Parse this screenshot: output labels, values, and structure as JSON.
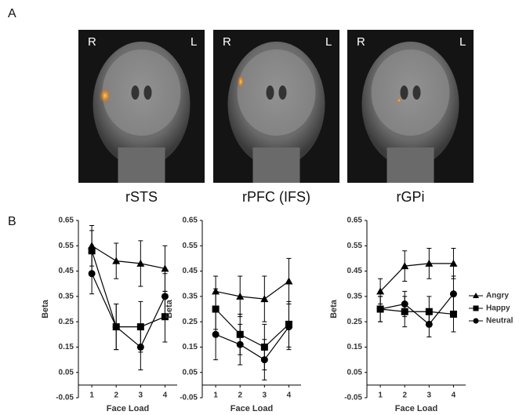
{
  "panel_labels": [
    "A",
    "B"
  ],
  "images": [
    {
      "caption": "rSTS",
      "left": "R",
      "right": "L"
    },
    {
      "caption": "rPFC (IFS)",
      "left": "R",
      "right": "L"
    },
    {
      "caption": "rGPi",
      "left": "R",
      "right": "L"
    }
  ],
  "chart_data": [
    {
      "type": "line",
      "x_label": "Face Load",
      "y_label": "Beta",
      "x": [
        1,
        2,
        3,
        4
      ],
      "xlim": [
        0.45,
        4.5
      ],
      "xticks": [
        1,
        2,
        3,
        4
      ],
      "ylim": [
        -0.05,
        0.65
      ],
      "yticks": [
        -0.05,
        0.05,
        0.15,
        0.25,
        0.35,
        0.45,
        0.55,
        0.65
      ],
      "color": "#000000",
      "series": [
        {
          "marker": "triangle",
          "values": [
            0.55,
            0.49,
            0.48,
            0.46
          ],
          "errors": [
            0.08,
            0.07,
            0.09,
            0.09
          ]
        },
        {
          "marker": "square",
          "values": [
            0.53,
            0.23,
            0.23,
            0.27
          ],
          "errors": [
            0.08,
            0.09,
            0.1,
            0.1
          ]
        },
        {
          "marker": "circle",
          "values": [
            0.44,
            0.23,
            0.15,
            0.35
          ],
          "errors": [
            0.08,
            0.09,
            0.09,
            0.09
          ]
        }
      ]
    },
    {
      "type": "line",
      "x_label": "Face Load",
      "y_label": "Beta",
      "x": [
        1,
        2,
        3,
        4
      ],
      "xlim": [
        0.45,
        4.5
      ],
      "xticks": [
        1,
        2,
        3,
        4
      ],
      "ylim": [
        -0.05,
        0.65
      ],
      "yticks": [
        -0.05,
        0.05,
        0.15,
        0.25,
        0.35,
        0.45,
        0.55,
        0.65
      ],
      "color": "#000000",
      "series": [
        {
          "marker": "triangle",
          "values": [
            0.37,
            0.35,
            0.34,
            0.41
          ],
          "errors": [
            0.06,
            0.08,
            0.09,
            0.09
          ]
        },
        {
          "marker": "square",
          "values": [
            0.3,
            0.2,
            0.15,
            0.24
          ],
          "errors": [
            0.08,
            0.08,
            0.09,
            0.09
          ]
        },
        {
          "marker": "circle",
          "values": [
            0.2,
            0.16,
            0.1,
            0.23
          ],
          "errors": [
            0.1,
            0.08,
            0.08,
            0.09
          ]
        }
      ]
    },
    {
      "type": "line",
      "x_label": "Face Load",
      "y_label": "Beta",
      "x": [
        1,
        2,
        3,
        4
      ],
      "xlim": [
        0.45,
        4.5
      ],
      "xticks": [
        1,
        2,
        3,
        4
      ],
      "ylim": [
        -0.05,
        0.65
      ],
      "yticks": [
        -0.05,
        0.05,
        0.15,
        0.25,
        0.35,
        0.45,
        0.55,
        0.65
      ],
      "color": "#000000",
      "legend": "right",
      "series": [
        {
          "name": "Angry",
          "marker": "triangle",
          "values": [
            0.37,
            0.47,
            0.48,
            0.48
          ],
          "errors": [
            0.05,
            0.06,
            0.06,
            0.06
          ]
        },
        {
          "name": "Happy",
          "marker": "square",
          "values": [
            0.3,
            0.29,
            0.29,
            0.28
          ],
          "errors": [
            0.05,
            0.06,
            0.06,
            0.07
          ]
        },
        {
          "name": "Neutral",
          "marker": "circle",
          "values": [
            0.3,
            0.32,
            0.24,
            0.36
          ],
          "errors": [
            0.05,
            0.05,
            0.05,
            0.07
          ]
        }
      ]
    }
  ]
}
